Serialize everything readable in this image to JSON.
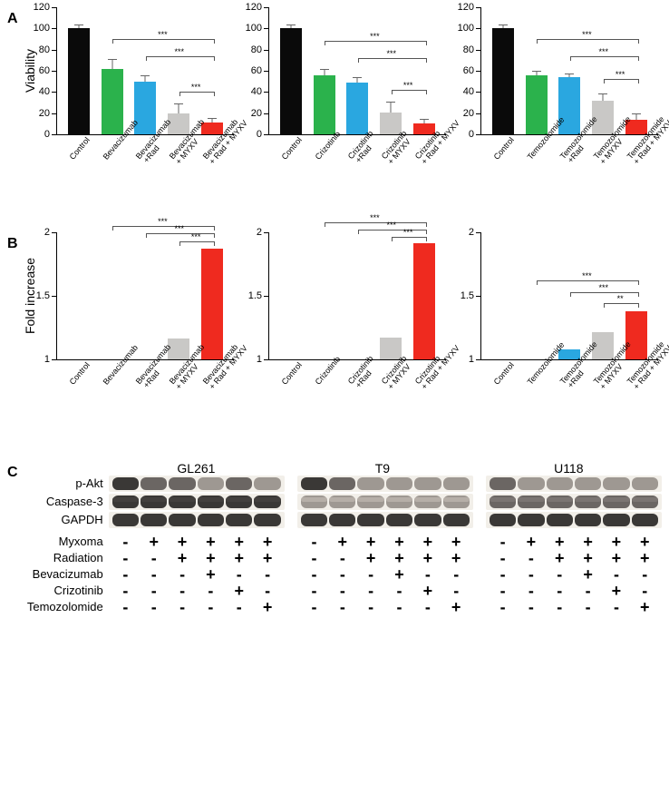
{
  "colors": {
    "control": "#0a0a0a",
    "drug": "#2bb24c",
    "drug_rad": "#2aa7e0",
    "drug_myxv": "#c9c8c6",
    "drug_rad_myxv": "#ef2a1f",
    "axis": "#000000",
    "error": "#777777",
    "blot_dark": "#3a3836",
    "blot_mid": "#6b6663",
    "blot_light": "#9e9892",
    "blot_bg": "#f2efe9"
  },
  "panelA": {
    "ylabel": "Viability",
    "ylim": [
      0,
      120
    ],
    "ytick_step": 20,
    "charts": [
      {
        "bars": [
          {
            "label": "Control",
            "value": 100,
            "err": 3,
            "colorKey": "control"
          },
          {
            "label": "Bevacizumab",
            "value": 62,
            "err": 8,
            "colorKey": "drug"
          },
          {
            "label": "Bevacizumab\n+Rad",
            "value": 50,
            "err": 5,
            "colorKey": "drug_rad"
          },
          {
            "label": "Bevacizumab\n+ MYXV",
            "value": 20,
            "err": 8,
            "colorKey": "drug_myxv"
          },
          {
            "label": "Bevacizumab\n+ Rad + MYXV",
            "value": 11,
            "err": 4,
            "colorKey": "drug_rad_myxv"
          }
        ],
        "sig": [
          {
            "from": 1,
            "to": 4,
            "y": 90,
            "text": "***"
          },
          {
            "from": 2,
            "to": 4,
            "y": 74,
            "text": "***"
          },
          {
            "from": 3,
            "to": 4,
            "y": 40,
            "text": "***"
          }
        ]
      },
      {
        "bars": [
          {
            "label": "Control",
            "value": 100,
            "err": 3,
            "colorKey": "control"
          },
          {
            "label": "Crizotinib",
            "value": 56,
            "err": 5,
            "colorKey": "drug"
          },
          {
            "label": "Crizotinib\n+Rad",
            "value": 49,
            "err": 4,
            "colorKey": "drug_rad"
          },
          {
            "label": "Crizotinib\n+ MYXV",
            "value": 21,
            "err": 9,
            "colorKey": "drug_myxv"
          },
          {
            "label": "Crizotinib\n+ Rad + MYXV",
            "value": 10,
            "err": 4,
            "colorKey": "drug_rad_myxv"
          }
        ],
        "sig": [
          {
            "from": 1,
            "to": 4,
            "y": 88,
            "text": "***"
          },
          {
            "from": 2,
            "to": 4,
            "y": 72,
            "text": "***"
          },
          {
            "from": 3,
            "to": 4,
            "y": 42,
            "text": "***"
          }
        ]
      },
      {
        "bars": [
          {
            "label": "Control",
            "value": 100,
            "err": 3,
            "colorKey": "control"
          },
          {
            "label": "Temozolomide",
            "value": 56,
            "err": 3,
            "colorKey": "drug"
          },
          {
            "label": "Temozolomide\n+Rad",
            "value": 54,
            "err": 3,
            "colorKey": "drug_rad"
          },
          {
            "label": "Temozolomide\n+ MYXV",
            "value": 32,
            "err": 6,
            "colorKey": "drug_myxv"
          },
          {
            "label": "Temozolomide\n+ Rad + MYXV",
            "value": 14,
            "err": 5,
            "colorKey": "drug_rad_myxv"
          }
        ],
        "sig": [
          {
            "from": 1,
            "to": 4,
            "y": 90,
            "text": "***"
          },
          {
            "from": 2,
            "to": 4,
            "y": 74,
            "text": "***"
          },
          {
            "from": 3,
            "to": 4,
            "y": 52,
            "text": "***"
          }
        ]
      }
    ]
  },
  "panelB": {
    "ylabel": "Fold increase",
    "ylim": [
      1,
      2
    ],
    "yticks": [
      1,
      1.5,
      2
    ],
    "charts": [
      {
        "bars": [
          {
            "label": "Control",
            "value": 1.0,
            "colorKey": "control"
          },
          {
            "label": "Bevacizumab",
            "value": 1.0,
            "colorKey": "drug"
          },
          {
            "label": "Bevacizumab\n+Rad",
            "value": 1.0,
            "colorKey": "drug_rad"
          },
          {
            "label": "Bevacizumab\n+ MYXV",
            "value": 1.16,
            "colorKey": "drug_myxv"
          },
          {
            "label": "Bevacizumab\n+ Rad + MYXV",
            "value": 1.87,
            "colorKey": "drug_rad_myxv"
          }
        ],
        "sig": [
          {
            "from": 1,
            "to": 4,
            "y": 2.05,
            "text": "***"
          },
          {
            "from": 2,
            "to": 4,
            "y": 1.99,
            "text": "***"
          },
          {
            "from": 3,
            "to": 4,
            "y": 1.93,
            "text": "***"
          }
        ]
      },
      {
        "bars": [
          {
            "label": "Control",
            "value": 1.0,
            "colorKey": "control"
          },
          {
            "label": "Crizotinib",
            "value": 1.0,
            "colorKey": "drug"
          },
          {
            "label": "Crizotinib\n+Rad",
            "value": 1.0,
            "colorKey": "drug_rad"
          },
          {
            "label": "Crizotinib\n+ MYXV",
            "value": 1.17,
            "colorKey": "drug_myxv"
          },
          {
            "label": "Crizotinib\n+ Rad + MYXV",
            "value": 1.91,
            "colorKey": "drug_rad_myxv"
          }
        ],
        "sig": [
          {
            "from": 1,
            "to": 4,
            "y": 2.08,
            "text": "***"
          },
          {
            "from": 2,
            "to": 4,
            "y": 2.02,
            "text": "***"
          },
          {
            "from": 3,
            "to": 4,
            "y": 1.96,
            "text": "***"
          }
        ]
      },
      {
        "bars": [
          {
            "label": "Control",
            "value": 1.0,
            "colorKey": "control"
          },
          {
            "label": "Temozolomide",
            "value": 1.0,
            "colorKey": "drug"
          },
          {
            "label": "Temozolomide\n+Rad",
            "value": 1.08,
            "colorKey": "drug_rad"
          },
          {
            "label": "Temozolomide\n+ MYXV",
            "value": 1.21,
            "colorKey": "drug_myxv"
          },
          {
            "label": "Temozolomide\n+ Rad + MYXV",
            "value": 1.38,
            "colorKey": "drug_rad_myxv"
          }
        ],
        "sig": [
          {
            "from": 1,
            "to": 4,
            "y": 1.62,
            "text": "***"
          },
          {
            "from": 2,
            "to": 4,
            "y": 1.53,
            "text": "***"
          },
          {
            "from": 3,
            "to": 4,
            "y": 1.44,
            "text": "**"
          }
        ]
      }
    ]
  },
  "panelC": {
    "cell_lines": [
      "GL261",
      "T9",
      "U118"
    ],
    "proteins": [
      "p-Akt",
      "Caspase-3",
      "GAPDH"
    ],
    "blot_intensity": {
      "p-Akt": [
        [
          "dark",
          "mid",
          "mid",
          "light",
          "mid",
          "light"
        ],
        [
          "dark",
          "mid",
          "light",
          "light",
          "light",
          "light"
        ],
        [
          "mid",
          "light",
          "light",
          "light",
          "light",
          "light"
        ]
      ],
      "Caspase-3": [
        [
          "dark",
          "dark",
          "dark",
          "dark",
          "dark",
          "dark"
        ],
        [
          "light",
          "light",
          "light",
          "light",
          "light",
          "light"
        ],
        [
          "mid",
          "mid",
          "mid",
          "mid",
          "mid",
          "mid"
        ]
      ],
      "GAPDH": [
        [
          "dark",
          "dark",
          "dark",
          "dark",
          "dark",
          "dark"
        ],
        [
          "dark",
          "dark",
          "dark",
          "dark",
          "dark",
          "dark"
        ],
        [
          "dark",
          "dark",
          "dark",
          "dark",
          "dark",
          "dark"
        ]
      ]
    },
    "caspase_double": true,
    "treatments": [
      {
        "name": "Myxoma",
        "pattern": [
          "-",
          "+",
          "+",
          "+",
          "+",
          "+"
        ]
      },
      {
        "name": "Radiation",
        "pattern": [
          "-",
          "-",
          "+",
          "+",
          "+",
          "+"
        ]
      },
      {
        "name": "Bevacizumab",
        "pattern": [
          "-",
          "-",
          "-",
          "+",
          "-",
          "-"
        ]
      },
      {
        "name": "Crizotinib",
        "pattern": [
          "-",
          "-",
          "-",
          "-",
          "+",
          "-"
        ]
      },
      {
        "name": "Temozolomide",
        "pattern": [
          "-",
          "-",
          "-",
          "-",
          "-",
          "+"
        ]
      }
    ],
    "lanes_per_group": 6
  },
  "labels": {
    "A": "A",
    "B": "B",
    "C": "C"
  }
}
